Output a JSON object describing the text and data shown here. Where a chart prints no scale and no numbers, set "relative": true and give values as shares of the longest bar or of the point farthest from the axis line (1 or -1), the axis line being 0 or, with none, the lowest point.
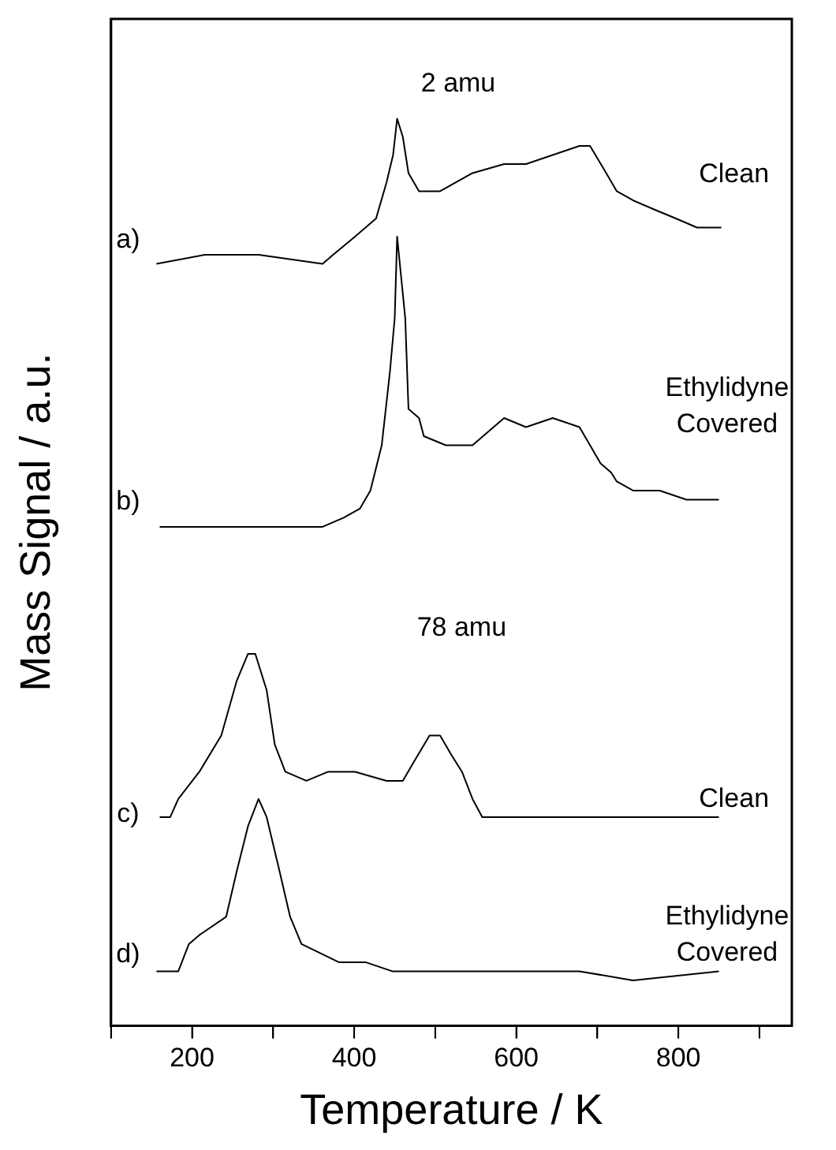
{
  "chart_data": {
    "type": "line",
    "relative": true,
    "xlabel": "Temperature / K",
    "ylabel": "Mass Signal / a.u.",
    "xlim": [
      100,
      940
    ],
    "xticks": [
      {
        "value": 100,
        "label": null
      },
      200,
      {
        "value": 300,
        "label": null
      },
      400,
      {
        "value": 500,
        "label": null
      },
      600,
      {
        "value": 700,
        "label": null
      },
      800,
      {
        "value": 900,
        "label": null
      }
    ],
    "grid": false,
    "legend": false,
    "marker": "none",
    "line_style": "solid",
    "series": [
      {
        "color": "#000000",
        "x": [
          156,
          216,
          282,
          361,
          374,
          401,
          427,
          440,
          448,
          453,
          460,
          467,
          480,
          506,
          546,
          585,
          612,
          645,
          678,
          691,
          711,
          724,
          744,
          770,
          797,
          823,
          853
        ],
        "values": [
          0.84,
          0.85,
          0.85,
          0.84,
          0.85,
          0.87,
          0.89,
          0.93,
          0.96,
          1.0,
          0.98,
          0.94,
          0.92,
          0.92,
          0.94,
          0.95,
          0.95,
          0.96,
          0.97,
          0.97,
          0.94,
          0.92,
          0.91,
          0.9,
          0.89,
          0.88,
          0.88
        ]
      },
      {
        "color": "#000000",
        "x": [
          160,
          282,
          361,
          387,
          407,
          420,
          434,
          444,
          450,
          453,
          463,
          467,
          480,
          486,
          513,
          546,
          585,
          612,
          645,
          678,
          704,
          717,
          724,
          744,
          777,
          810,
          850
        ],
        "values": [
          0.55,
          0.55,
          0.55,
          0.56,
          0.57,
          0.59,
          0.64,
          0.72,
          0.78,
          0.87,
          0.78,
          0.68,
          0.67,
          0.65,
          0.64,
          0.64,
          0.67,
          0.66,
          0.67,
          0.66,
          0.62,
          0.61,
          0.6,
          0.59,
          0.59,
          0.58,
          0.58
        ]
      },
      {
        "color": "#000000",
        "x": [
          160,
          173,
          183,
          209,
          236,
          255,
          269,
          278,
          292,
          302,
          315,
          341,
          368,
          401,
          440,
          460,
          473,
          493,
          506,
          519,
          533,
          546,
          558,
          612,
          678,
          744,
          850
        ],
        "values": [
          0.23,
          0.23,
          0.25,
          0.28,
          0.32,
          0.38,
          0.41,
          0.41,
          0.37,
          0.31,
          0.28,
          0.27,
          0.28,
          0.28,
          0.27,
          0.27,
          0.29,
          0.32,
          0.32,
          0.3,
          0.28,
          0.25,
          0.23,
          0.23,
          0.23,
          0.23,
          0.23
        ]
      },
      {
        "color": "#000000",
        "x": [
          156,
          183,
          196,
          209,
          242,
          255,
          269,
          282,
          292,
          308,
          321,
          335,
          381,
          414,
          447,
          480,
          546,
          612,
          678,
          744,
          850
        ],
        "values": [
          0.06,
          0.06,
          0.09,
          0.1,
          0.12,
          0.17,
          0.22,
          0.25,
          0.23,
          0.17,
          0.12,
          0.09,
          0.07,
          0.07,
          0.06,
          0.06,
          0.06,
          0.06,
          0.06,
          0.05,
          0.06
        ]
      }
    ],
    "annotations": [
      "2 amu",
      "a)",
      "Clean",
      "b)",
      "Ethylidyne\nCovered",
      "78 amu",
      "c)",
      "Clean",
      "d)",
      "Ethylidyne\nCovered"
    ]
  }
}
